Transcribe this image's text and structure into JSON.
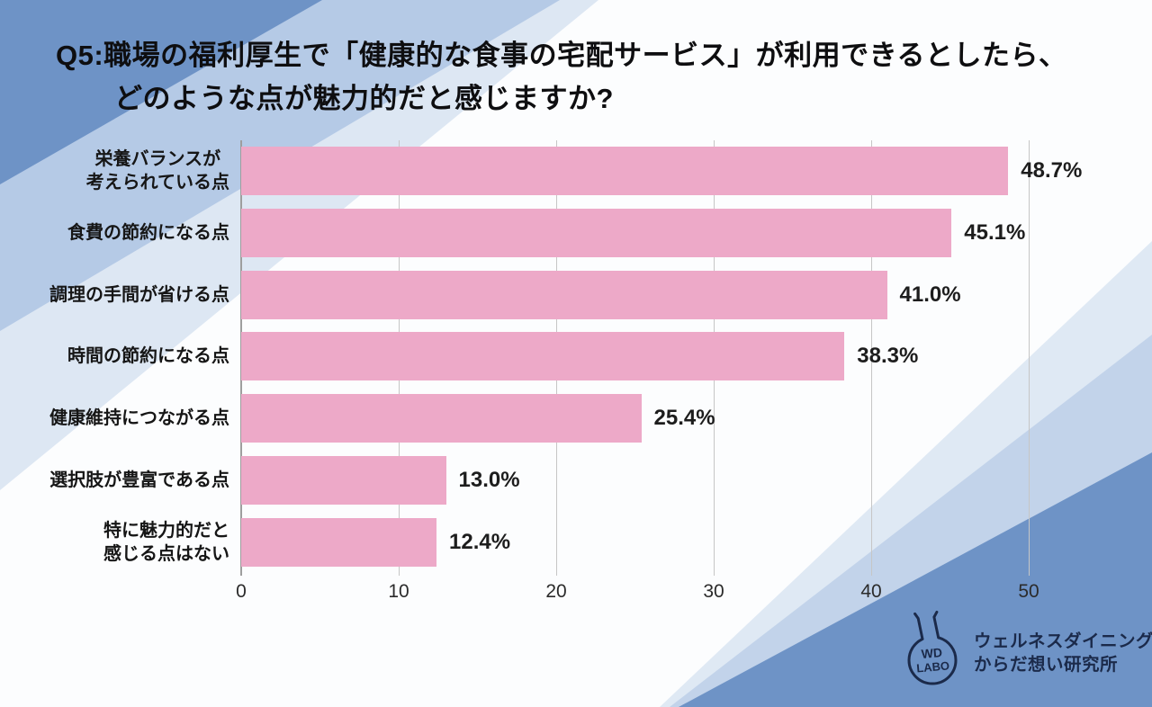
{
  "title": {
    "line1": "Q5:職場の福利厚生で「健康的な食事の宅配サービス」が利用できるとしたら、",
    "line2": "どのような点が魅力的だと感じますか?"
  },
  "chart_data": {
    "type": "bar",
    "orientation": "horizontal",
    "title": "Q5:職場の福利厚生で「健康的な食事の宅配サービス」が利用できるとしたら、どのような点が魅力的だと感じますか?",
    "categories": [
      "栄養バランスが\n考えられている点",
      "食費の節約になる点",
      "調理の手間が省ける点",
      "時間の節約になる点",
      "健康維持につながる点",
      "選択肢が豊富である点",
      "特に魅力的だと\n感じる点はない"
    ],
    "values": [
      48.7,
      45.1,
      41.0,
      38.3,
      25.4,
      13.0,
      12.4
    ],
    "value_labels": [
      "48.7%",
      "45.1%",
      "41.0%",
      "38.3%",
      "25.4%",
      "13.0%",
      "12.4%"
    ],
    "xlabel": "",
    "ylabel": "",
    "xlim": [
      0,
      52
    ],
    "xticks": [
      0,
      10,
      20,
      30,
      40,
      50
    ],
    "grid": true,
    "legend": "none",
    "bar_color": "#eda9c8"
  },
  "logo": {
    "badge_top": "WD",
    "badge_bottom": "LABO",
    "text_line1": "ウェルネスダイニング",
    "text_line2": "からだ想い研究所"
  },
  "colors": {
    "accent_blue": "#6e93c6",
    "light_blue": "#b5cae6",
    "palest_blue": "#dde7f3",
    "bar_pink": "#eda9c8",
    "gridline": "#c6c6c6",
    "text": "#141414",
    "logo_navy": "#1b2a4a"
  }
}
